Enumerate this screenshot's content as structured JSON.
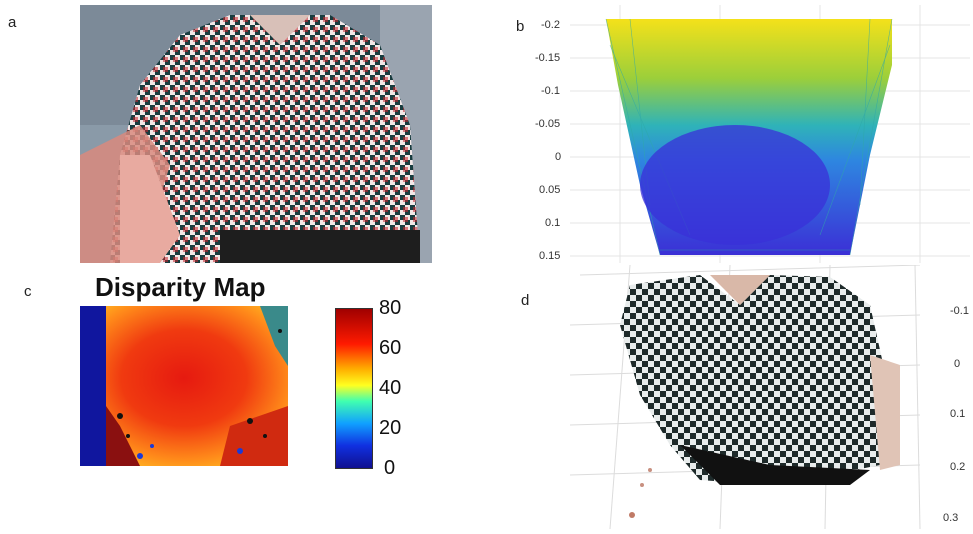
{
  "panels": {
    "a": {
      "label": "a"
    },
    "b": {
      "label": "b",
      "y_ticks": [
        "-0.2",
        "-0.15",
        "-0.1",
        "-0.05",
        "0",
        "0.05",
        "0.1",
        "0.15"
      ]
    },
    "c": {
      "label": "c",
      "title": "Disparity Map",
      "colorbar_ticks": [
        "80",
        "60",
        "40",
        "20",
        "0"
      ]
    },
    "d": {
      "label": "d",
      "z_ticks": [
        "-0.1",
        "0",
        "0.1",
        "0.2",
        "0.3"
      ]
    }
  },
  "colors": {
    "panel_b_top": "#f4e11a",
    "panel_b_bottom": "#3b2fd6",
    "disparity_high": "#d9001a",
    "disparity_low": "#1a1a9e"
  }
}
